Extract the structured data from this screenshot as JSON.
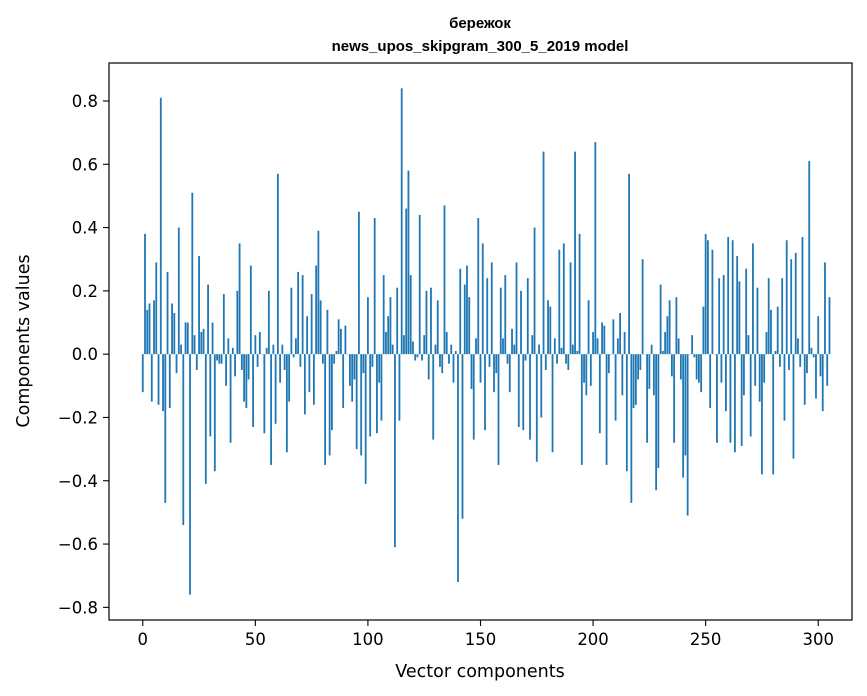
{
  "chart_data": {
    "type": "bar",
    "title": "бережок",
    "subtitle": "news_upos_skipgram_300_5_2019 model",
    "xlabel": "Vector components",
    "ylabel": "Components values",
    "xlim": [
      -15,
      315
    ],
    "ylim": [
      -0.84,
      0.92
    ],
    "xticks": [
      0,
      50,
      100,
      150,
      200,
      250,
      300
    ],
    "yticks": [
      -0.8,
      -0.6,
      -0.4,
      -0.2,
      0.0,
      0.2,
      0.4,
      0.6,
      0.8
    ],
    "ytick_labels": [
      "−0.8",
      "−0.6",
      "−0.4",
      "−0.2",
      "0.0",
      "0.2",
      "0.4",
      "0.6",
      "0.8"
    ],
    "grid": false,
    "bar_color": "#1f77b4",
    "values": [
      -0.12,
      0.38,
      0.14,
      0.16,
      -0.15,
      0.17,
      0.29,
      -0.16,
      0.81,
      -0.18,
      -0.47,
      0.26,
      -0.17,
      0.16,
      0.13,
      -0.06,
      0.4,
      0.03,
      -0.54,
      0.1,
      0.1,
      -0.76,
      0.51,
      0.06,
      -0.05,
      0.31,
      0.07,
      0.08,
      -0.41,
      0.22,
      -0.26,
      0.1,
      -0.37,
      -0.02,
      -0.03,
      -0.03,
      0.19,
      -0.1,
      0.05,
      -0.28,
      0.02,
      -0.07,
      0.2,
      0.35,
      -0.05,
      -0.15,
      -0.17,
      -0.08,
      0.28,
      -0.23,
      0.06,
      -0.04,
      0.07,
      0.0,
      -0.25,
      0.02,
      0.2,
      -0.35,
      0.03,
      -0.22,
      0.57,
      -0.09,
      0.03,
      -0.05,
      -0.31,
      -0.15,
      0.21,
      -0.01,
      0.05,
      0.26,
      -0.04,
      0.25,
      -0.19,
      0.12,
      -0.12,
      0.19,
      -0.16,
      0.28,
      0.39,
      0.17,
      -0.03,
      -0.35,
      0.14,
      -0.32,
      -0.24,
      -0.03,
      0.01,
      0.11,
      0.08,
      -0.17,
      0.09,
      0.0,
      -0.1,
      -0.15,
      -0.08,
      -0.3,
      0.45,
      -0.32,
      -0.06,
      -0.41,
      0.18,
      -0.26,
      -0.04,
      0.43,
      -0.25,
      -0.09,
      -0.21,
      0.25,
      0.07,
      0.12,
      0.18,
      0.03,
      -0.61,
      0.21,
      -0.21,
      0.84,
      0.06,
      0.46,
      0.58,
      0.25,
      0.04,
      -0.02,
      -0.01,
      0.44,
      -0.02,
      0.06,
      0.2,
      -0.08,
      0.21,
      -0.27,
      0.03,
      0.17,
      -0.04,
      -0.06,
      0.47,
      0.07,
      -0.03,
      0.03,
      -0.09,
      0.01,
      -0.72,
      0.27,
      -0.52,
      0.22,
      0.28,
      0.18,
      -0.11,
      -0.27,
      0.05,
      0.43,
      -0.09,
      0.35,
      -0.24,
      0.24,
      -0.04,
      0.29,
      -0.12,
      -0.06,
      -0.35,
      0.21,
      0.05,
      0.25,
      -0.03,
      -0.12,
      0.08,
      0.03,
      0.29,
      -0.23,
      0.2,
      -0.24,
      -0.02,
      0.24,
      -0.27,
      0.06,
      0.4,
      -0.34,
      0.03,
      -0.2,
      0.64,
      -0.05,
      0.17,
      0.15,
      -0.31,
      0.05,
      -0.03,
      0.33,
      0.02,
      0.35,
      -0.03,
      -0.05,
      0.29,
      0.03,
      0.64,
      0.01,
      0.38,
      -0.35,
      -0.09,
      -0.13,
      0.17,
      -0.1,
      0.07,
      0.67,
      0.05,
      -0.25,
      0.1,
      0.09,
      -0.35,
      -0.06,
      0.0,
      0.11,
      -0.21,
      0.05,
      0.13,
      -0.13,
      0.07,
      -0.37,
      0.57,
      -0.47,
      -0.17,
      -0.16,
      -0.08,
      -0.05,
      0.3,
      0.0,
      -0.28,
      -0.11,
      0.03,
      -0.13,
      -0.43,
      -0.36,
      0.22,
      0.01,
      0.07,
      0.12,
      0.17,
      -0.07,
      -0.28,
      0.18,
      0.05,
      -0.08,
      -0.39,
      -0.32,
      -0.51,
      0.0,
      0.06,
      -0.01,
      -0.08,
      -0.09,
      -0.12,
      0.15,
      0.38,
      0.36,
      -0.17,
      0.33,
      0.0,
      -0.28,
      0.24,
      -0.09,
      0.25,
      -0.18,
      0.37,
      -0.28,
      0.36,
      -0.31,
      0.31,
      0.23,
      -0.29,
      -0.13,
      0.27,
      0.06,
      -0.26,
      0.35,
      -0.1,
      0.21,
      -0.15,
      -0.38,
      -0.09,
      0.07,
      0.24,
      0.14,
      -0.38,
      0.01,
      0.15,
      -0.04,
      0.24,
      -0.21,
      0.36,
      -0.05,
      0.3,
      -0.33,
      0.32,
      0.05,
      -0.04,
      0.37,
      -0.16,
      -0.06,
      0.61,
      0.02,
      -0.01,
      -0.14,
      0.12,
      -0.07,
      -0.18,
      0.29,
      -0.1,
      0.18
    ]
  }
}
